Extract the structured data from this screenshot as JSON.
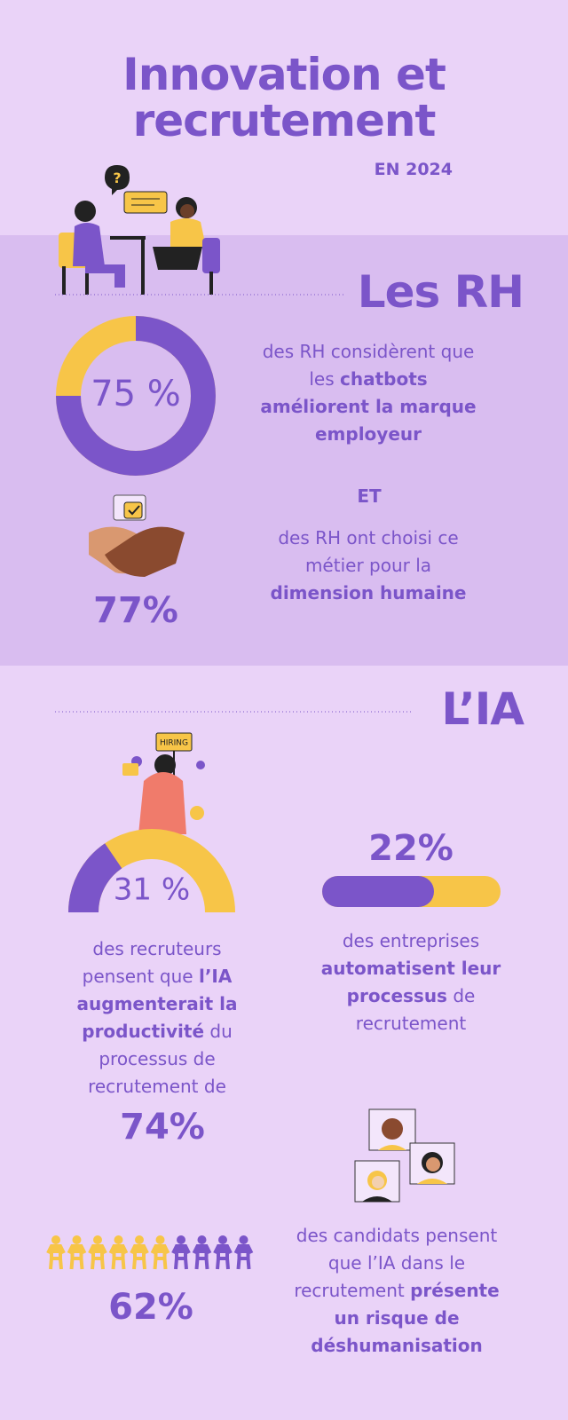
{
  "title": "Innovation et recrutement",
  "subtitle": "EN 2024",
  "sections": [
    {
      "heading": "Les RH",
      "stats": [
        {
          "value": 75,
          "label": "75 %",
          "text": [
            {
              "text": "des RH considèrent que les "
            },
            {
              "text": "chatbots améliorent la marque employeur",
              "bold": true
            }
          ]
        },
        {
          "connector": "ET",
          "figure": "77%",
          "text": [
            {
              "text": "des RH ont choisi ce métier pour la "
            },
            {
              "text": "dimension humaine",
              "bold": true
            }
          ]
        }
      ]
    },
    {
      "heading": "L’IA",
      "illustration_sign": "HIRING",
      "stats": [
        {
          "value": 31,
          "label": "31 %",
          "text": [
            {
              "text": "des recruteurs pensent que "
            },
            {
              "text": "l’IA augmenterait la productivité",
              "bold": true
            },
            {
              "text": " du processus de recrutement de"
            }
          ],
          "figure": "74%"
        },
        {
          "figure": "22%",
          "text": [
            {
              "text": "des entreprises "
            },
            {
              "text": "automatisent leur processus",
              "bold": true
            },
            {
              "text": " de recrutement"
            }
          ]
        },
        {
          "figure": "62%",
          "text": [
            {
              "text": "des candidats pensent que l’IA dans le recrutement "
            },
            {
              "text": "présente un risque de déshumanisation",
              "bold": true
            }
          ]
        }
      ]
    }
  ]
}
